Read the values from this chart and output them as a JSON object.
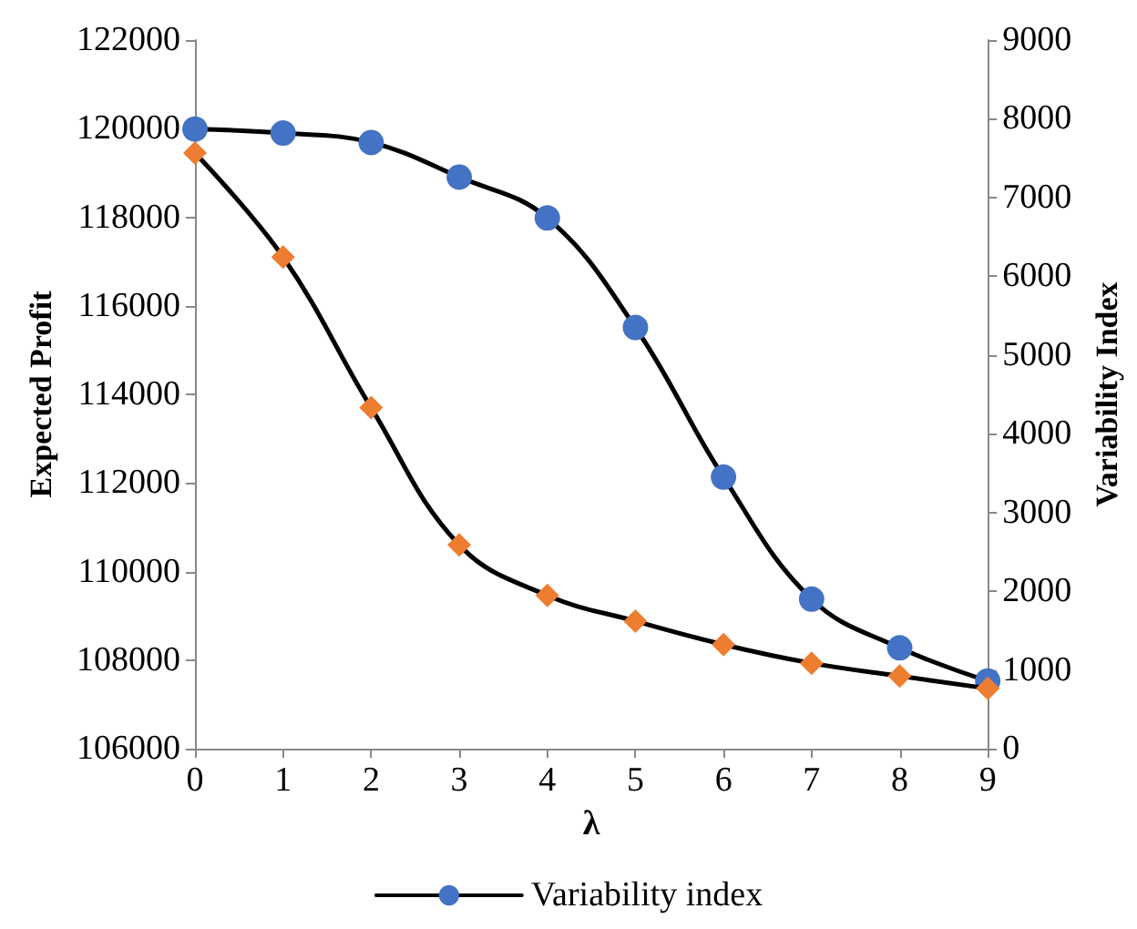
{
  "chart_data": {
    "type": "line",
    "xlabel": "λ",
    "ylabel": "Expected Profit",
    "y2label": "Variability Index",
    "x": [
      0,
      1,
      2,
      3,
      4,
      5,
      6,
      7,
      8,
      9
    ],
    "series": [
      {
        "color": "#ed7d31",
        "marker": "diamond",
        "values": [
          119450,
          117100,
          113700,
          110600,
          109460,
          108880,
          108350,
          107930,
          107640,
          107360
        ]
      },
      {
        "name": "Variability index",
        "color": "#4472c4",
        "marker": "circle",
        "axis": "y2",
        "values": [
          7870,
          7820,
          7700,
          7260,
          6740,
          5350,
          3450,
          1900,
          1280,
          860
        ]
      }
    ],
    "xlim": [
      0,
      9
    ],
    "xticks": [
      0,
      1,
      2,
      3,
      4,
      5,
      6,
      7,
      8,
      9
    ],
    "ylim": [
      106000,
      122000
    ],
    "yticks": [
      106000,
      108000,
      110000,
      112000,
      114000,
      116000,
      118000,
      120000,
      122000
    ],
    "y2lim": [
      0,
      9000
    ],
    "y2ticks": [
      0,
      1000,
      2000,
      3000,
      4000,
      5000,
      6000,
      7000,
      8000,
      9000
    ],
    "grid": false,
    "legend": "bottom",
    "line_style": "solid"
  }
}
